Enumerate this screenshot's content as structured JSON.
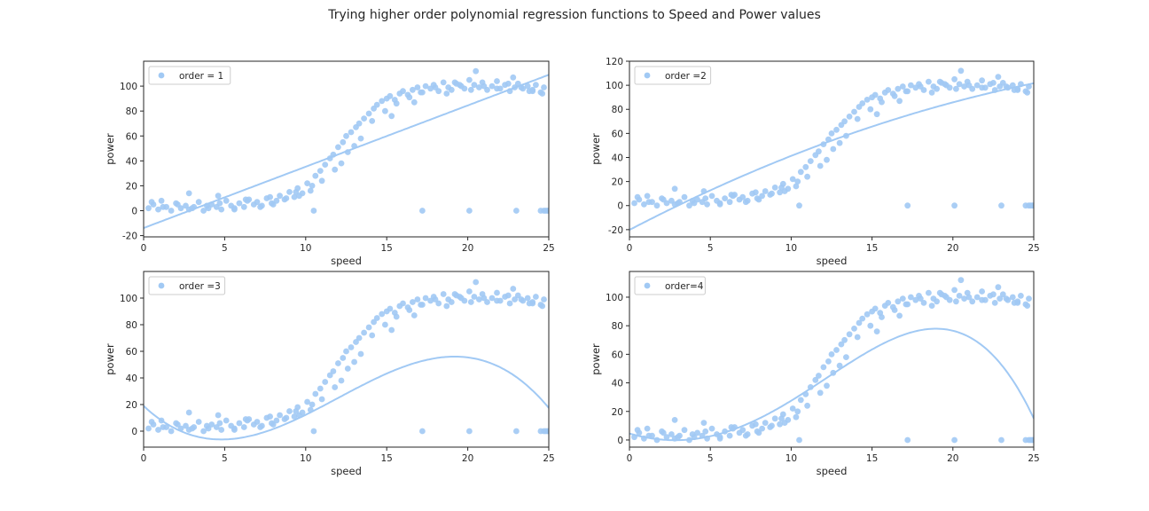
{
  "figure": {
    "suptitle": "Trying higher order polynomial regression functions to Speed and Power values",
    "point_color": "#a1c9f4"
  },
  "chart_data": [
    {
      "type": "scatter",
      "title": "",
      "xlabel": "speed",
      "ylabel": "power",
      "xlim": [
        0,
        25
      ],
      "ylim": [
        -21,
        120
      ],
      "xticks": [
        0,
        5,
        10,
        15,
        20,
        25
      ],
      "yticks": [
        -20,
        0,
        20,
        40,
        60,
        80,
        100
      ],
      "legend": {
        "label": "order = 1",
        "position": "top-left"
      },
      "fit": {
        "order": 1,
        "coefficients": [
          -13.9,
          4.92
        ]
      },
      "series": [
        {
          "name": "order = 1"
        }
      ]
    },
    {
      "type": "scatter",
      "title": "",
      "xlabel": "speed",
      "ylabel": "power",
      "xlim": [
        0,
        25
      ],
      "ylim": [
        -26,
        120
      ],
      "xticks": [
        0,
        5,
        10,
        15,
        20,
        25
      ],
      "yticks": [
        -20,
        0,
        20,
        40,
        60,
        80,
        100,
        120
      ],
      "legend": {
        "label": "order =2",
        "position": "top-left"
      },
      "fit": {
        "order": 2,
        "coefficients": [
          -20.2,
          7.0,
          -0.085
        ]
      },
      "series": [
        {
          "name": "order =2"
        }
      ]
    },
    {
      "type": "scatter",
      "title": "",
      "xlabel": "speed",
      "ylabel": "power",
      "xlim": [
        0,
        25
      ],
      "ylim": [
        -12,
        120
      ],
      "xticks": [
        0,
        5,
        10,
        15,
        20,
        25
      ],
      "yticks": [
        0,
        20,
        40,
        60,
        80,
        100
      ],
      "legend": {
        "label": "order =3",
        "position": "top-left"
      },
      "fit": {
        "order": 3,
        "coefficients": [
          19.0,
          -11.5,
          1.5,
          -0.0417
        ]
      },
      "series": [
        {
          "name": "order =3"
        }
      ]
    },
    {
      "type": "scatter",
      "title": "",
      "xlabel": "speed",
      "ylabel": "power",
      "xlim": [
        0,
        25
      ],
      "ylim": [
        -5,
        118
      ],
      "xticks": [
        0,
        5,
        10,
        15,
        20,
        25
      ],
      "yticks": [
        0,
        20,
        40,
        60,
        80,
        100
      ],
      "legend": {
        "label": "order=4",
        "position": "top-left"
      },
      "fit": {
        "order": 4,
        "coefficients": [
          4.5,
          -3.2,
          0.52,
          0.015,
          -0.0012
        ]
      },
      "series": [
        {
          "name": "order=4"
        }
      ]
    }
  ],
  "observations": {
    "speed": [
      0.3,
      0.6,
      0.9,
      1.1,
      1.4,
      1.7,
      2.0,
      2.3,
      2.6,
      2.8,
      3.1,
      3.4,
      3.7,
      4.0,
      4.2,
      4.5,
      4.8,
      5.1,
      5.4,
      5.6,
      5.9,
      6.2,
      6.5,
      6.8,
      7.0,
      7.3,
      7.6,
      7.9,
      8.2,
      8.4,
      8.7,
      9.0,
      9.3,
      9.5,
      9.8,
      10.1,
      10.4,
      10.6,
      10.9,
      11.2,
      11.5,
      11.7,
      12.0,
      12.3,
      12.5,
      12.8,
      13.1,
      13.3,
      13.6,
      13.9,
      14.2,
      14.4,
      14.7,
      15.0,
      15.2,
      15.5,
      15.8,
      16.0,
      16.3,
      16.6,
      16.9,
      17.1,
      17.4,
      17.7,
      17.9,
      18.2,
      18.5,
      18.8,
      19.0,
      19.3,
      19.6,
      19.8,
      20.1,
      20.4,
      20.7,
      20.9,
      21.2,
      21.5,
      21.8,
      22.0,
      22.3,
      22.6,
      22.9,
      23.1,
      23.4,
      23.7,
      24.0,
      24.2,
      24.5,
      24.7,
      0.5,
      1.2,
      2.1,
      3.0,
      3.9,
      4.7,
      5.6,
      6.4,
      7.2,
      8.0,
      8.8,
      9.6,
      10.3,
      11.0,
      11.8,
      12.6,
      13.4,
      14.1,
      14.9,
      15.6,
      16.4,
      17.2,
      18.0,
      18.7,
      19.5,
      20.2,
      21.0,
      21.8,
      22.5,
      23.3,
      24.0,
      24.6,
      10.5,
      17.2,
      20.1,
      23.0,
      24.5,
      24.7,
      24.8,
      24.9,
      25.0,
      2.8,
      4.6,
      6.3,
      7.8,
      9.4,
      12.2,
      13.0,
      15.3,
      16.7,
      19.2,
      20.5,
      22.8,
      23.8
    ],
    "power": [
      2,
      5,
      1,
      8,
      3,
      0,
      6,
      2,
      4,
      1,
      3,
      7,
      0,
      2,
      5,
      3,
      1,
      8,
      4,
      2,
      6,
      3,
      9,
      5,
      7,
      4,
      10,
      6,
      8,
      12,
      9,
      15,
      11,
      18,
      14,
      22,
      20,
      28,
      32,
      37,
      42,
      45,
      51,
      55,
      60,
      63,
      67,
      70,
      74,
      78,
      82,
      85,
      88,
      90,
      92,
      89,
      94,
      96,
      93,
      97,
      99,
      95,
      100,
      98,
      101,
      96,
      103,
      99,
      97,
      102,
      100,
      98,
      105,
      101,
      99,
      103,
      97,
      100,
      104,
      98,
      101,
      96,
      99,
      102,
      98,
      100,
      97,
      101,
      95,
      99,
      7,
      3,
      5,
      2,
      4,
      6,
      1,
      8,
      3,
      5,
      10,
      12,
      16,
      24,
      33,
      47,
      58,
      72,
      80,
      86,
      91,
      95,
      99,
      94,
      101,
      97,
      100,
      98,
      102,
      99,
      96,
      94,
      0,
      0,
      0,
      0,
      0,
      0,
      0,
      0,
      0,
      14,
      12,
      9,
      11,
      15,
      38,
      52,
      76,
      87,
      103,
      112,
      107,
      96
    ]
  }
}
